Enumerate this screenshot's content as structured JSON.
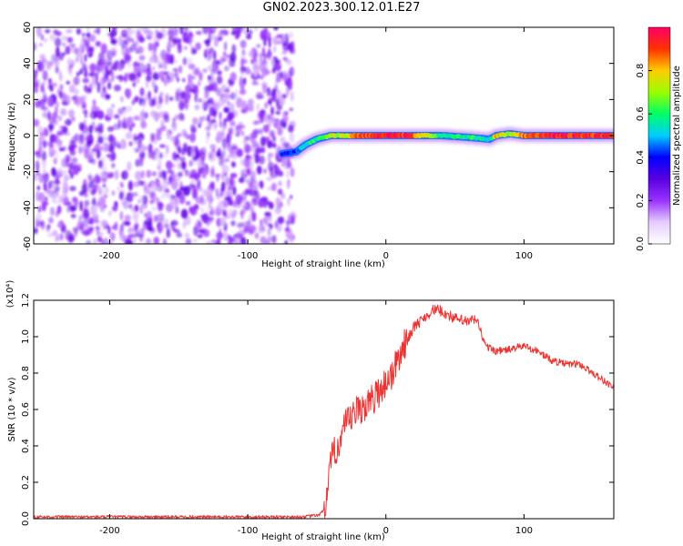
{
  "figure": {
    "title": "GN02.2023.300.12.01.E27"
  },
  "chart_data": [
    {
      "type": "heatmap",
      "xlabel": "Height of straight line (km)",
      "ylabel": "Frequency (Hz)",
      "xlim": [
        -255,
        165
      ],
      "ylim": [
        -60,
        60
      ],
      "xticks": [
        -200,
        -100,
        0,
        100
      ],
      "yticks": [
        -60,
        -40,
        -20,
        0,
        20,
        40,
        60
      ],
      "colorbar": {
        "label": "Normalized spectral amplitude",
        "range": [
          0.0,
          1.0
        ],
        "ticks": [
          0.0,
          0.2,
          0.4,
          0.6,
          0.8
        ],
        "colors": [
          "#ffffff",
          "#e6ccff",
          "#9933ff",
          "#5a00e0",
          "#0000ff",
          "#00ccff",
          "#00ff66",
          "#99ff00",
          "#ffcc00",
          "#ff3300",
          "#ff0066"
        ]
      },
      "noise_region": {
        "x": [
          -255,
          -67
        ],
        "amplitude": [
          0.1,
          0.3
        ]
      },
      "signal_ridge": {
        "x": [
          -75,
          -65,
          -58,
          -50,
          -40,
          -30,
          -20,
          0,
          20,
          40,
          60,
          75,
          80,
          90,
          100,
          120,
          165
        ],
        "frequency": [
          -10,
          -9,
          -5,
          -2,
          0,
          0,
          0,
          0,
          0,
          0,
          -1,
          -2,
          0,
          1,
          0,
          0,
          0
        ],
        "amplitude": [
          0.35,
          0.45,
          0.55,
          0.6,
          0.7,
          0.75,
          0.9,
          0.95,
          0.9,
          0.6,
          0.6,
          0.55,
          0.8,
          0.7,
          0.85,
          0.95,
          0.9
        ]
      },
      "grid": false,
      "legend": "none"
    },
    {
      "type": "line",
      "xlabel": "Height of straight line (km)",
      "ylabel": "SNR (10 * v/v)",
      "yscale_label": "(x10⁴)",
      "xlim": [
        -255,
        165
      ],
      "ylim": [
        0,
        1.2
      ],
      "xticks": [
        -200,
        -100,
        0,
        100
      ],
      "yticks": [
        0.0,
        0.2,
        0.4,
        0.6,
        0.8,
        1.0,
        1.2
      ],
      "color": "#ee3333",
      "series": [
        {
          "x": [
            -255,
            -200,
            -150,
            -100,
            -60,
            -48,
            -45,
            -42,
            -40,
            -38,
            -35,
            -32,
            -30,
            -25,
            -20,
            -15,
            -10,
            -5,
            0,
            5,
            10,
            20,
            30,
            35,
            40,
            50,
            60,
            65,
            68,
            72,
            80,
            90,
            100,
            110,
            120,
            130,
            140,
            150,
            165
          ],
          "y": [
            0.01,
            0.01,
            0.01,
            0.01,
            0.01,
            0.02,
            0.05,
            0.15,
            0.3,
            0.35,
            0.4,
            0.45,
            0.5,
            0.55,
            0.6,
            0.62,
            0.65,
            0.7,
            0.75,
            0.8,
            0.9,
            1.05,
            1.12,
            1.15,
            1.14,
            1.1,
            1.08,
            1.1,
            1.05,
            0.95,
            0.92,
            0.93,
            0.95,
            0.92,
            0.87,
            0.85,
            0.85,
            0.8,
            0.72
          ]
        }
      ],
      "grid": false,
      "legend": "none"
    }
  ]
}
